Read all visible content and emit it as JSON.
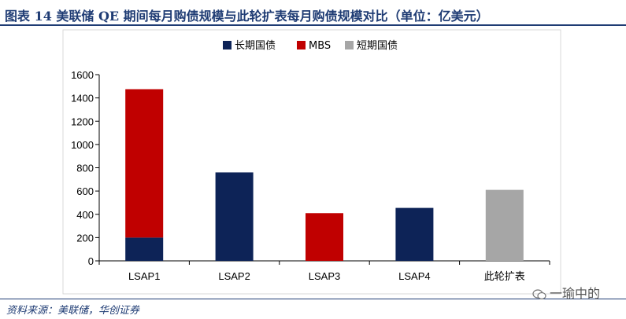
{
  "title": "图表 14   美联储 QE 期间每月购债规模与此轮扩表每月购债规模对比（单位：亿美元）",
  "source": "资料来源：美联储，华创证券",
  "watermark": {
    "text": "一瑜中的",
    "icon": "wechat-icon"
  },
  "chart_data": {
    "type": "bar",
    "stacked": true,
    "categories": [
      "LSAP1",
      "LSAP2",
      "LSAP3",
      "LSAP4",
      "此轮扩表"
    ],
    "series": [
      {
        "name": "长期国债",
        "color": "#0d2357",
        "values": [
          200,
          760,
          0,
          455,
          0
        ]
      },
      {
        "name": "MBS",
        "color": "#c00000",
        "values": [
          1275,
          0,
          410,
          0,
          0
        ]
      },
      {
        "name": "短期国债",
        "color": "#a6a6a6",
        "values": [
          0,
          0,
          0,
          0,
          610
        ]
      }
    ],
    "ylim": [
      0,
      1600
    ],
    "yticks": [
      0,
      200,
      400,
      600,
      800,
      1000,
      1200,
      1400,
      1600
    ],
    "xlabel": "",
    "ylabel": "",
    "grid": false,
    "legend_position": "top"
  }
}
